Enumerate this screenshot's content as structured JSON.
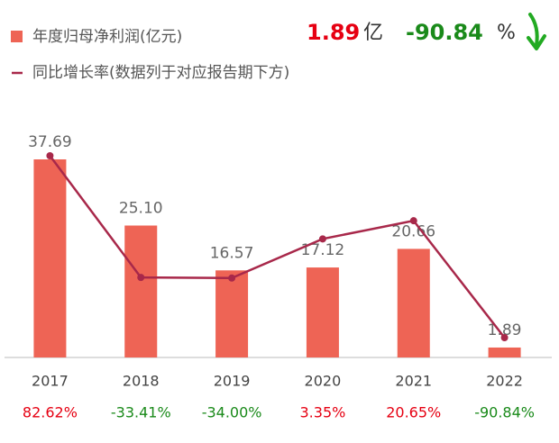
{
  "chart_data": {
    "type": "bar-line",
    "headline": {
      "value": "1.89",
      "unit": "亿",
      "change": "-90.84",
      "change_unit": "%"
    },
    "categories": [
      "2017",
      "2018",
      "2019",
      "2020",
      "2021",
      "2022"
    ],
    "series": [
      {
        "name": "年度归母净利润(亿元)",
        "type": "bar",
        "color": "#ee6455",
        "values": [
          37.69,
          25.1,
          16.57,
          17.12,
          20.66,
          1.89
        ],
        "value_labels": [
          "37.69",
          "25.10",
          "16.57",
          "17.12",
          "20.66",
          "1.89"
        ]
      },
      {
        "name": "同比增长率(数据列于对应报告期下方)",
        "type": "line",
        "axis": "y2",
        "color": "#a8284a",
        "values": [
          82.62,
          -33.41,
          -34.0,
          3.35,
          20.65,
          -90.84
        ],
        "value_labels": [
          "82.62%",
          "-33.41%",
          "-34.00%",
          "3.35%",
          "20.65%",
          "-90.84%"
        ]
      }
    ]
  }
}
